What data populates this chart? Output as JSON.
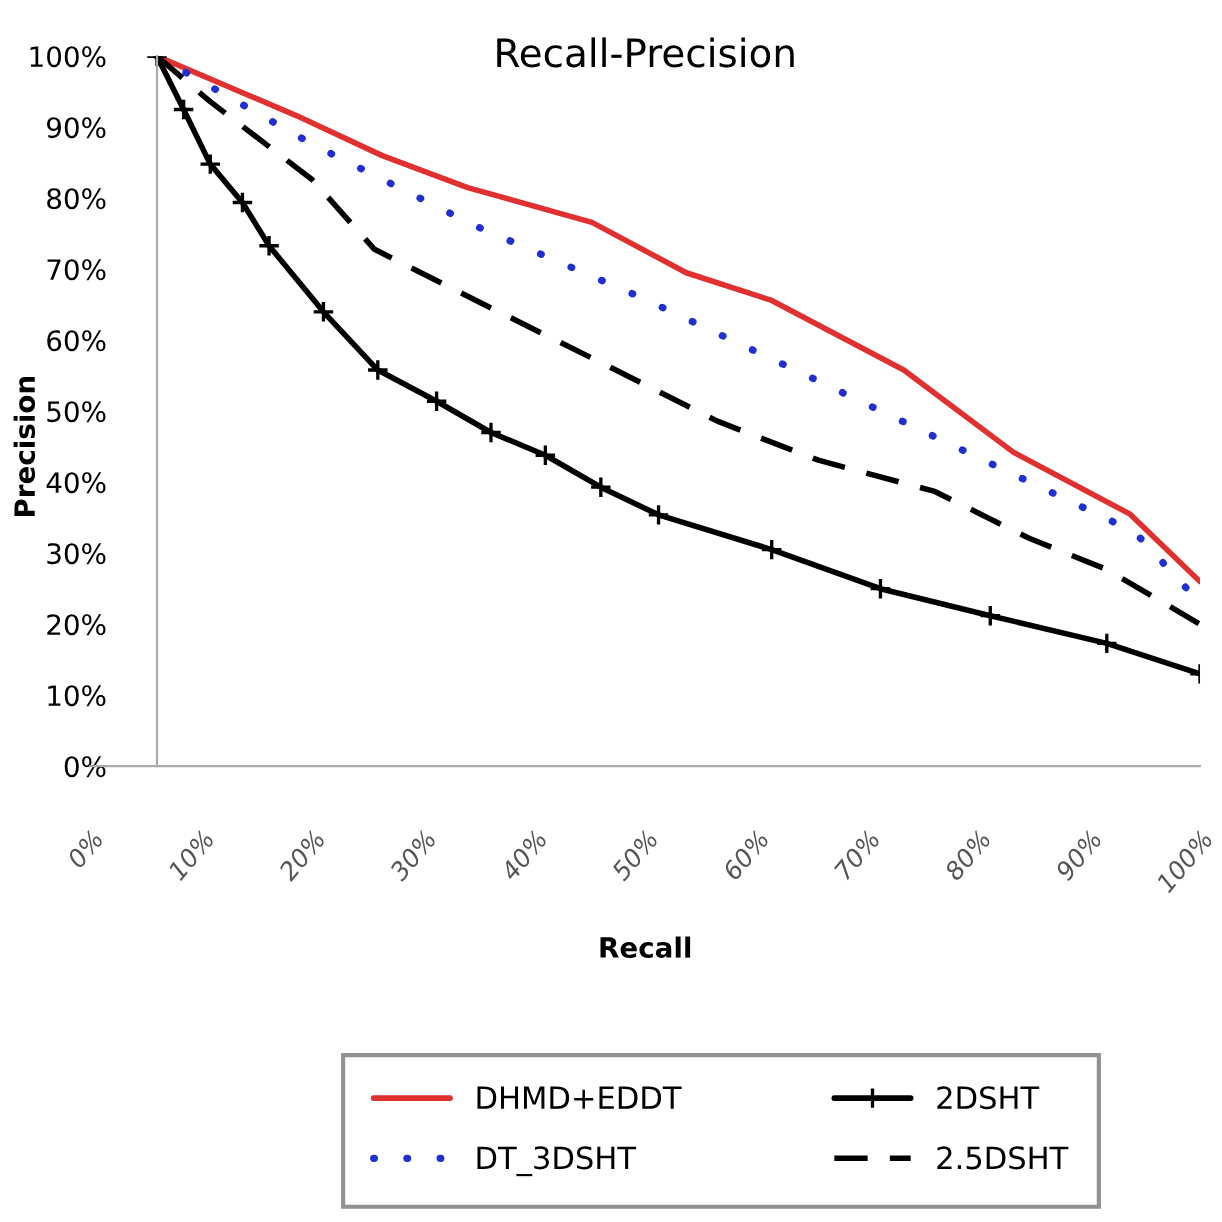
{
  "chart_data": {
    "type": "line",
    "title": "Recall-Precision",
    "xlabel": "Recall",
    "ylabel": "Precision",
    "xlim": [
      0,
      100
    ],
    "ylim": [
      0,
      100
    ],
    "xticks": [
      {
        "value": 0,
        "label": "0%"
      },
      {
        "value": 10,
        "label": "10%"
      },
      {
        "value": 20,
        "label": "20%"
      },
      {
        "value": 30,
        "label": "30%"
      },
      {
        "value": 40,
        "label": "40%"
      },
      {
        "value": 50,
        "label": "50%"
      },
      {
        "value": 60,
        "label": "60%"
      },
      {
        "value": 70,
        "label": "70%"
      },
      {
        "value": 80,
        "label": "80%"
      },
      {
        "value": 90,
        "label": "90%"
      },
      {
        "value": 100,
        "label": "100%"
      }
    ],
    "yticks": [
      {
        "value": 0,
        "label": "0%"
      },
      {
        "value": 10,
        "label": "10%"
      },
      {
        "value": 20,
        "label": "20%"
      },
      {
        "value": 30,
        "label": "30%"
      },
      {
        "value": 40,
        "label": "40%"
      },
      {
        "value": 50,
        "label": "50%"
      },
      {
        "value": 60,
        "label": "60%"
      },
      {
        "value": 70,
        "label": "70%"
      },
      {
        "value": 80,
        "label": "80%"
      },
      {
        "value": 90,
        "label": "90%"
      },
      {
        "value": 100,
        "label": "100%"
      }
    ],
    "grid": false,
    "legend": "bottom",
    "series": [
      {
        "name": "DHMD+EDDT",
        "color": "#e03030",
        "line_style": "solid",
        "marker": "none",
        "x": [
          6,
          18.6,
          26.3,
          34,
          45.2,
          53.7,
          61.4,
          73.3,
          83.2,
          93.7,
          100
        ],
        "values": [
          100,
          91.6,
          86,
          81.5,
          76.6,
          69.5,
          65.6,
          55.8,
          44.2,
          35.5,
          26
        ]
      },
      {
        "name": "DT_3DSHT",
        "color": "#1f2fd0",
        "line_style": "dotted",
        "marker": "none",
        "x": [
          6,
          20,
          34.7,
          49.8,
          64.6,
          79.3,
          94.1,
          100
        ],
        "values": [
          100,
          87.6,
          76.1,
          65.9,
          55,
          44,
          33,
          23
        ]
      },
      {
        "name": "2DSHT",
        "color": "#000000",
        "line_style": "solid",
        "marker": "cross",
        "x": [
          6,
          8.4,
          10.8,
          13.7,
          16.1,
          21,
          25.9,
          31.2,
          36.1,
          41,
          46,
          51.2,
          61.4,
          71.2,
          81.1,
          91.6,
          100
        ],
        "values": [
          100,
          92.5,
          84.8,
          79.4,
          73.3,
          64,
          55.8,
          51.4,
          47,
          43.8,
          39.3,
          35.4,
          30.5,
          25,
          21.2,
          17.3,
          13
        ]
      },
      {
        "name": "2.5DSHT",
        "color": "#000000",
        "line_style": "dashed",
        "marker": "none",
        "x": [
          6,
          10.8,
          20,
          25.6,
          36.8,
          45.3,
          56.5,
          65.6,
          76.1,
          84.6,
          91.6,
          100
        ],
        "values": [
          100,
          93.6,
          82.6,
          72.8,
          64,
          57.4,
          48.6,
          43.1,
          38.7,
          32.1,
          27.7,
          20
        ]
      }
    ]
  }
}
